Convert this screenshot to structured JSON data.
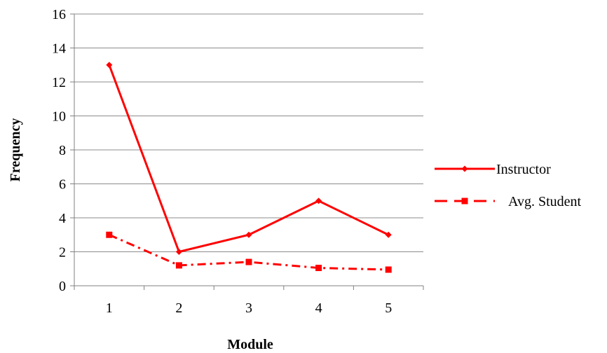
{
  "chart_data": {
    "type": "line",
    "xlabel": "Module",
    "ylabel": "Frequency",
    "categories": [
      "1",
      "2",
      "3",
      "4",
      "5"
    ],
    "ylim": [
      0,
      16
    ],
    "yticks": [
      "0",
      "2",
      "4",
      "6",
      "8",
      "10",
      "12",
      "14",
      "16"
    ],
    "grid": true,
    "legend_position": "right",
    "series": [
      {
        "name": "Instructor",
        "values": [
          13,
          2,
          3,
          5,
          3
        ],
        "color": "#ff0000",
        "line_style": "solid",
        "marker": "diamond"
      },
      {
        "name": "Avg. Student",
        "values": [
          3,
          1.2,
          1.4,
          1.05,
          0.95
        ],
        "color": "#ff0000",
        "line_style": "dash-dot",
        "marker": "square"
      }
    ]
  }
}
